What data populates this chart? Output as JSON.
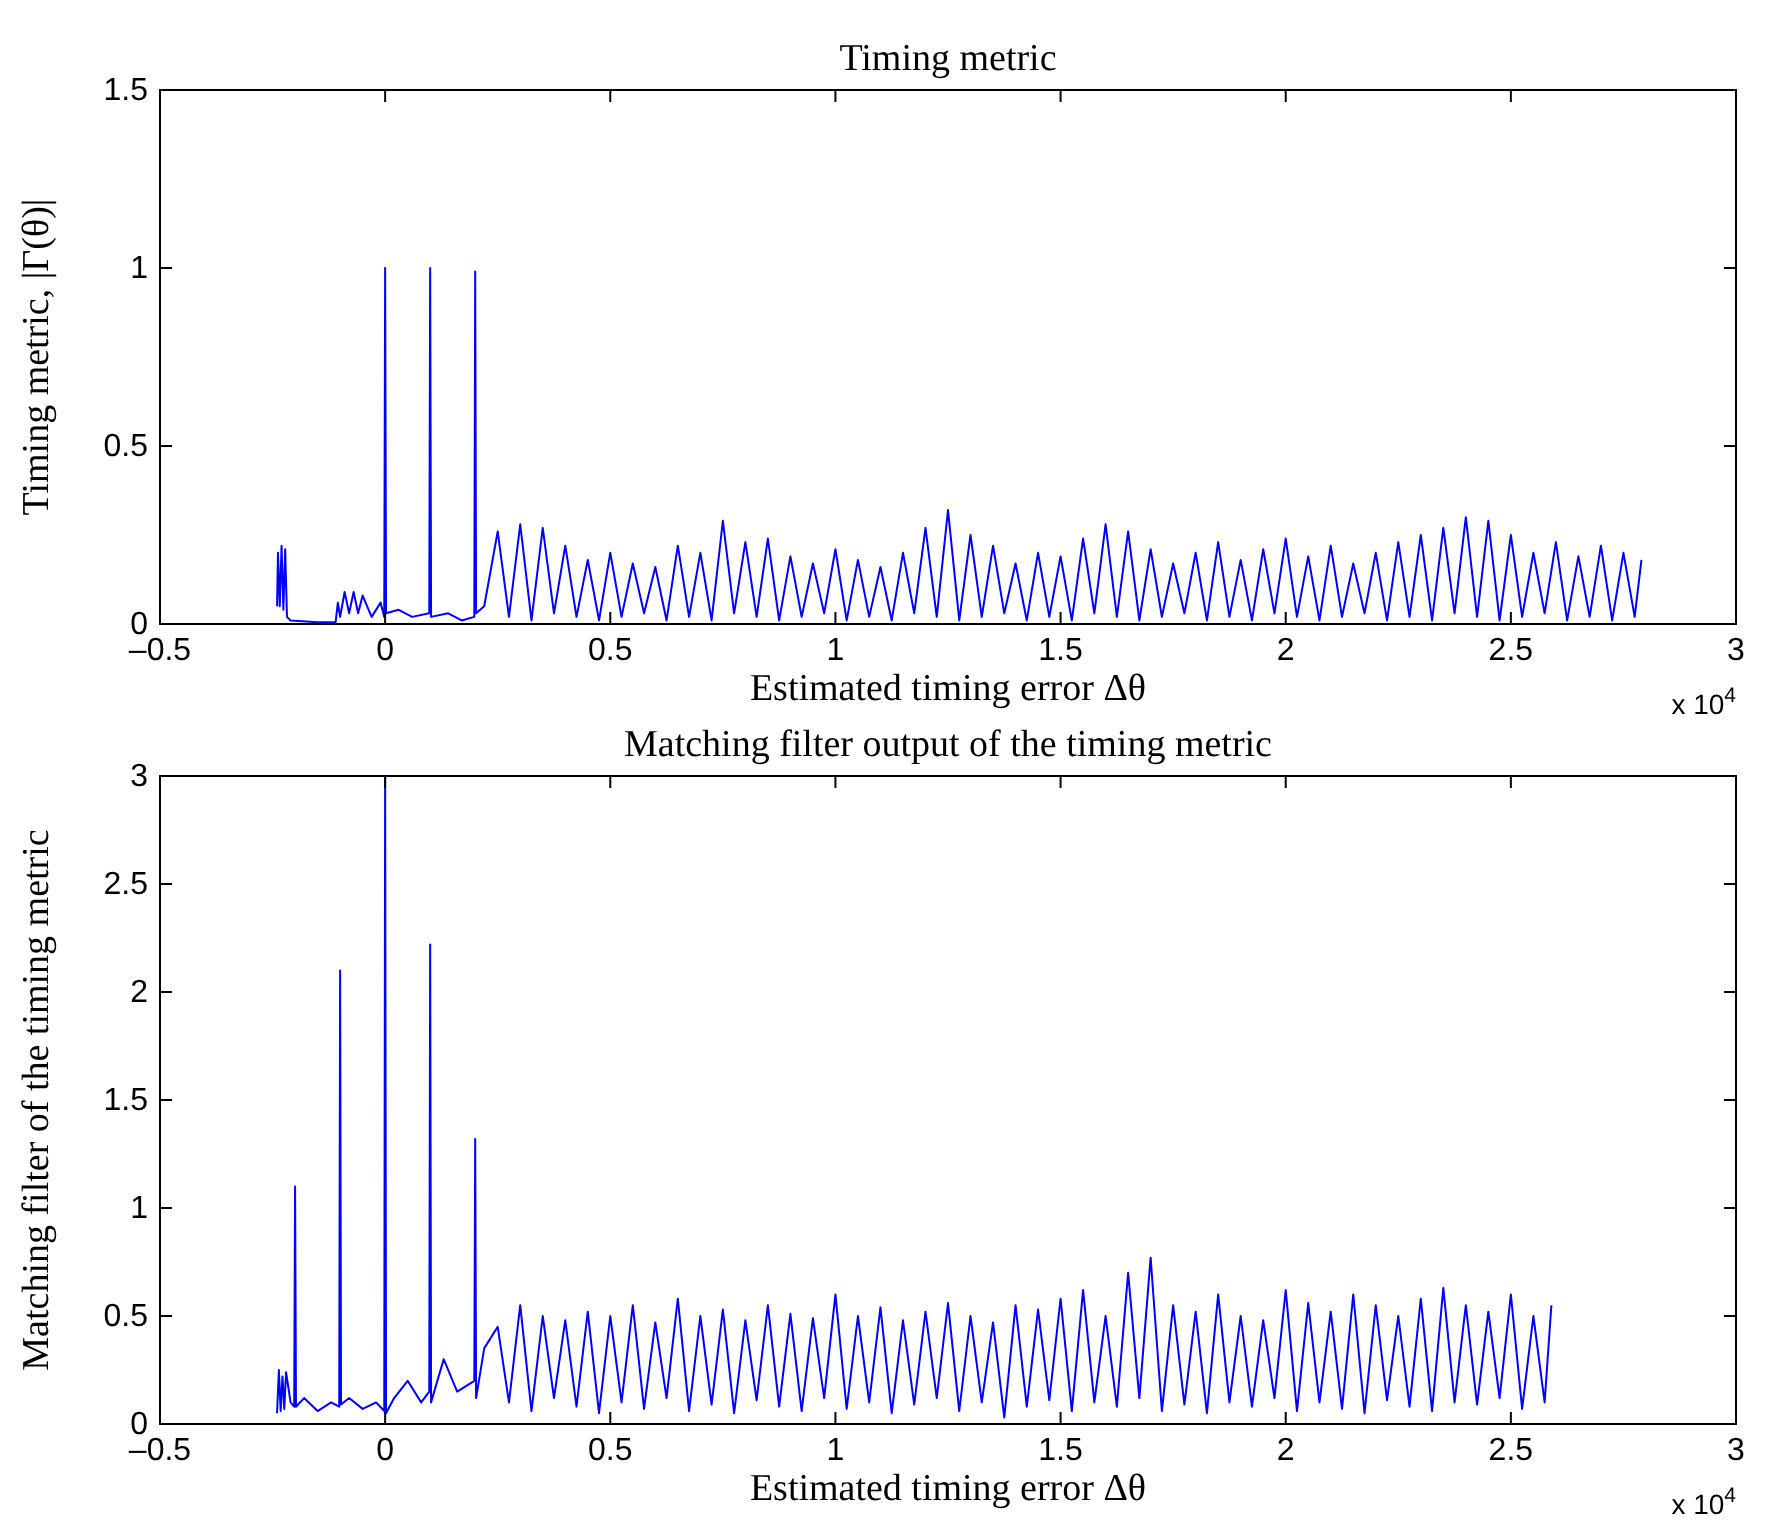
{
  "chart_data": [
    {
      "type": "line",
      "title": "Timing metric",
      "xlabel": "Estimated timing error Δθ",
      "ylabel": "Timing metric, |Γ(θ)|",
      "annotations": [
        "x 10$^{4}$"
      ],
      "xlim": [
        -0.5,
        3
      ],
      "xticks": [
        {
          "value": -0.5,
          "label": "–0.5"
        },
        0,
        0.5,
        1,
        1.5,
        2,
        2.5,
        3
      ],
      "ylim": [
        0,
        1.5
      ],
      "yticks": [
        0,
        0.5,
        1,
        1.5
      ],
      "grid": false,
      "x": [
        -0.24,
        -0.238,
        -0.234,
        -0.23,
        -0.226,
        -0.222,
        -0.218,
        -0.21,
        -0.15,
        -0.11,
        -0.105,
        -0.1,
        -0.09,
        -0.08,
        -0.07,
        -0.06,
        -0.05,
        -0.03,
        -0.01,
        -0.002,
        0,
        0.002,
        0.03,
        0.06,
        0.098,
        0.1,
        0.102,
        0.14,
        0.17,
        0.198,
        0.2,
        0.202,
        0.22,
        0.25,
        0.275,
        0.3,
        0.325,
        0.35,
        0.375,
        0.4,
        0.425,
        0.45,
        0.475,
        0.5,
        0.525,
        0.55,
        0.575,
        0.6,
        0.625,
        0.65,
        0.675,
        0.7,
        0.725,
        0.75,
        0.775,
        0.8,
        0.825,
        0.85,
        0.875,
        0.9,
        0.925,
        0.95,
        0.975,
        1,
        1.025,
        1.05,
        1.075,
        1.1,
        1.125,
        1.15,
        1.175,
        1.2,
        1.225,
        1.25,
        1.275,
        1.3,
        1.325,
        1.35,
        1.375,
        1.4,
        1.425,
        1.45,
        1.475,
        1.5,
        1.525,
        1.55,
        1.575,
        1.6,
        1.625,
        1.65,
        1.675,
        1.7,
        1.725,
        1.75,
        1.775,
        1.8,
        1.825,
        1.85,
        1.875,
        1.9,
        1.925,
        1.95,
        1.975,
        2,
        2.025,
        2.05,
        2.075,
        2.1,
        2.125,
        2.15,
        2.175,
        2.2,
        2.225,
        2.25,
        2.275,
        2.3,
        2.325,
        2.35,
        2.375,
        2.4,
        2.425,
        2.45,
        2.475,
        2.5,
        2.525,
        2.55,
        2.575,
        2.6,
        2.625,
        2.65,
        2.675,
        2.7,
        2.725,
        2.75,
        2.775,
        2.79
      ],
      "series": [
        {
          "color": "#0000ff",
          "values": [
            0.05,
            0.2,
            0.05,
            0.22,
            0.04,
            0.21,
            0.02,
            0.01,
            0.005,
            0.005,
            0.06,
            0.02,
            0.09,
            0.03,
            0.09,
            0.03,
            0.08,
            0.02,
            0.06,
            0.02,
            1.0,
            0.03,
            0.04,
            0.02,
            0.03,
            1.0,
            0.02,
            0.03,
            0.01,
            0.02,
            0.99,
            0.03,
            0.05,
            0.26,
            0.02,
            0.28,
            0.01,
            0.27,
            0.03,
            0.22,
            0.02,
            0.18,
            0.01,
            0.2,
            0.02,
            0.17,
            0.03,
            0.16,
            0.01,
            0.22,
            0.02,
            0.2,
            0.01,
            0.29,
            0.03,
            0.23,
            0.02,
            0.24,
            0.01,
            0.19,
            0.02,
            0.17,
            0.03,
            0.21,
            0.01,
            0.18,
            0.02,
            0.16,
            0.01,
            0.2,
            0.03,
            0.27,
            0.02,
            0.32,
            0.01,
            0.25,
            0.02,
            0.22,
            0.03,
            0.17,
            0.01,
            0.2,
            0.02,
            0.19,
            0.01,
            0.24,
            0.03,
            0.28,
            0.02,
            0.26,
            0.01,
            0.21,
            0.02,
            0.17,
            0.03,
            0.2,
            0.01,
            0.23,
            0.02,
            0.18,
            0.01,
            0.21,
            0.03,
            0.24,
            0.02,
            0.19,
            0.01,
            0.22,
            0.02,
            0.17,
            0.03,
            0.2,
            0.01,
            0.23,
            0.02,
            0.25,
            0.01,
            0.27,
            0.03,
            0.3,
            0.02,
            0.29,
            0.01,
            0.25,
            0.02,
            0.2,
            0.03,
            0.23,
            0.01,
            0.19,
            0.02,
            0.22,
            0.01,
            0.2,
            0.02,
            0.18
          ]
        }
      ]
    },
    {
      "type": "line",
      "title": "Matching filter output of the timing metric",
      "xlabel": "Estimated timing error Δθ",
      "ylabel": "Matching filter of the timing metric",
      "annotations": [
        "x 10$^{4}$"
      ],
      "xlim": [
        -0.5,
        3
      ],
      "xticks": [
        {
          "value": -0.5,
          "label": "–0.5"
        },
        0,
        0.5,
        1,
        1.5,
        2,
        2.5,
        3
      ],
      "ylim": [
        0,
        3
      ],
      "yticks": [
        0,
        0.5,
        1,
        1.5,
        2,
        2.5,
        3
      ],
      "grid": false,
      "x": [
        -0.24,
        -0.236,
        -0.232,
        -0.228,
        -0.224,
        -0.22,
        -0.21,
        -0.202,
        -0.2,
        -0.198,
        -0.18,
        -0.15,
        -0.12,
        -0.102,
        -0.1,
        -0.098,
        -0.08,
        -0.05,
        -0.02,
        -0.002,
        0,
        0.002,
        0.02,
        0.05,
        0.08,
        0.098,
        0.1,
        0.102,
        0.13,
        0.16,
        0.198,
        0.2,
        0.202,
        0.22,
        0.25,
        0.275,
        0.3,
        0.325,
        0.35,
        0.375,
        0.4,
        0.425,
        0.45,
        0.475,
        0.5,
        0.525,
        0.55,
        0.575,
        0.6,
        0.625,
        0.65,
        0.675,
        0.7,
        0.725,
        0.75,
        0.775,
        0.8,
        0.825,
        0.85,
        0.875,
        0.9,
        0.925,
        0.95,
        0.975,
        1,
        1.025,
        1.05,
        1.075,
        1.1,
        1.125,
        1.15,
        1.175,
        1.2,
        1.225,
        1.25,
        1.275,
        1.3,
        1.325,
        1.35,
        1.375,
        1.4,
        1.425,
        1.45,
        1.475,
        1.5,
        1.525,
        1.55,
        1.575,
        1.6,
        1.625,
        1.65,
        1.675,
        1.7,
        1.725,
        1.75,
        1.775,
        1.8,
        1.825,
        1.85,
        1.875,
        1.9,
        1.925,
        1.95,
        1.975,
        2,
        2.025,
        2.05,
        2.075,
        2.1,
        2.125,
        2.15,
        2.175,
        2.2,
        2.225,
        2.25,
        2.275,
        2.3,
        2.325,
        2.35,
        2.375,
        2.4,
        2.425,
        2.45,
        2.475,
        2.5,
        2.525,
        2.55,
        2.575,
        2.59
      ],
      "series": [
        {
          "color": "#0000ff",
          "values": [
            0.05,
            0.25,
            0.06,
            0.22,
            0.07,
            0.24,
            0.1,
            0.08,
            1.1,
            0.08,
            0.12,
            0.06,
            0.1,
            0.08,
            2.1,
            0.09,
            0.12,
            0.07,
            0.1,
            0.06,
            3.0,
            0.05,
            0.12,
            0.2,
            0.1,
            0.15,
            2.22,
            0.1,
            0.3,
            0.15,
            0.2,
            1.32,
            0.12,
            0.35,
            0.45,
            0.1,
            0.55,
            0.06,
            0.5,
            0.12,
            0.48,
            0.08,
            0.52,
            0.05,
            0.5,
            0.1,
            0.55,
            0.07,
            0.47,
            0.12,
            0.58,
            0.06,
            0.5,
            0.09,
            0.53,
            0.05,
            0.48,
            0.11,
            0.55,
            0.08,
            0.51,
            0.06,
            0.49,
            0.12,
            0.6,
            0.07,
            0.5,
            0.1,
            0.54,
            0.05,
            0.48,
            0.09,
            0.52,
            0.12,
            0.56,
            0.06,
            0.5,
            0.1,
            0.47,
            0.03,
            0.55,
            0.08,
            0.53,
            0.11,
            0.58,
            0.06,
            0.62,
            0.1,
            0.5,
            0.08,
            0.7,
            0.12,
            0.77,
            0.06,
            0.55,
            0.09,
            0.52,
            0.05,
            0.6,
            0.1,
            0.5,
            0.08,
            0.48,
            0.12,
            0.62,
            0.06,
            0.56,
            0.1,
            0.52,
            0.07,
            0.6,
            0.05,
            0.55,
            0.11,
            0.5,
            0.08,
            0.58,
            0.06,
            0.63,
            0.1,
            0.55,
            0.09,
            0.52,
            0.12,
            0.6,
            0.07,
            0.5,
            0.1,
            0.55
          ]
        }
      ]
    }
  ]
}
